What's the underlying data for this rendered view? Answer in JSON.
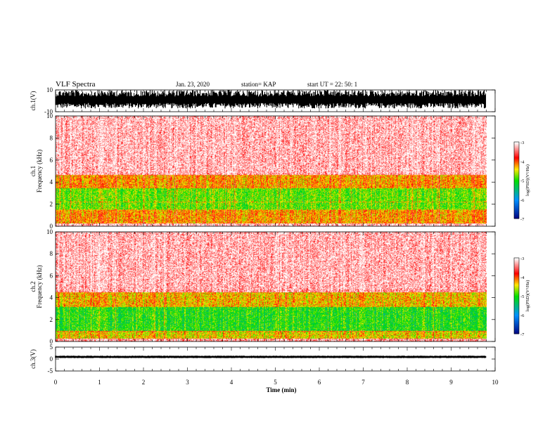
{
  "header": {
    "title": "VLF Spectra",
    "date": "Jan. 23, 2020",
    "station": "station= KAP",
    "start": "start  UT =   22: 50: 1"
  },
  "colors": {
    "low": "#00007f",
    "mid_low": "#0090ff",
    "mid": "#00e000",
    "mid_high": "#ffe800",
    "high": "#ff0000",
    "background": "#ffffff"
  },
  "chart_data": [
    {
      "type": "line",
      "name": "ch1-waveform",
      "ylabel": "ch.1(V)",
      "ylim": [
        -10,
        10
      ],
      "yticks": [
        "10",
        "-10"
      ],
      "x_range_min": [
        0,
        10
      ],
      "data_span_min": [
        0,
        9.8
      ],
      "description_values": {
        "typical_min": -7,
        "typical_max": 10
      }
    },
    {
      "type": "heatmap",
      "name": "ch1-spectrogram",
      "ylabel": "ch.1\nFrequency (kHz)",
      "ylim": [
        0,
        10
      ],
      "yticks": [
        "0",
        "2",
        "4",
        "6",
        "8",
        "10"
      ],
      "colorbar": {
        "label": "log(PSD)(V²/Hz)",
        "range": [
          -7,
          -3
        ],
        "ticks": [
          "-3",
          "-4",
          "-5",
          "-6",
          "-7"
        ]
      },
      "band_profile_khz": [
        {
          "freq_range": [
            0,
            0.3
          ],
          "log_psd": -3.2
        },
        {
          "freq_range": [
            0.3,
            1.5
          ],
          "log_psd": -4.2
        },
        {
          "freq_range": [
            1.5,
            3.5
          ],
          "log_psd": -4.8
        },
        {
          "freq_range": [
            3.5,
            4.7
          ],
          "log_psd": -4.2
        },
        {
          "freq_range": [
            4.7,
            10
          ],
          "log_psd": -3.3
        }
      ]
    },
    {
      "type": "heatmap",
      "name": "ch2-spectrogram",
      "ylabel": "ch.2\nFrequency (kHz)",
      "ylim": [
        0,
        10
      ],
      "yticks": [
        "0",
        "2",
        "4",
        "6",
        "8",
        "10"
      ],
      "colorbar": {
        "label": "log(PSD)(V²/Hz)",
        "range": [
          -7,
          -3
        ],
        "ticks": [
          "-3",
          "-4",
          "-5",
          "-6",
          "-7"
        ]
      },
      "band_profile_khz": [
        {
          "freq_range": [
            0,
            0.3
          ],
          "log_psd": -3.3
        },
        {
          "freq_range": [
            0.3,
            1.0
          ],
          "log_psd": -4.4
        },
        {
          "freq_range": [
            1.0,
            3.2
          ],
          "log_psd": -5.0
        },
        {
          "freq_range": [
            3.2,
            4.5
          ],
          "log_psd": -4.3
        },
        {
          "freq_range": [
            4.5,
            10
          ],
          "log_psd": -3.3
        }
      ]
    },
    {
      "type": "line",
      "name": "ch3-waveform",
      "ylabel": "ch.3(V)",
      "ylim": [
        -5,
        5
      ],
      "yticks": [
        "5",
        "0",
        "-5"
      ],
      "x_range_min": [
        0,
        10
      ],
      "data_span_min": [
        0,
        9.8
      ],
      "description_values": {
        "typical_min": 0.4,
        "typical_max": 1.4
      }
    }
  ],
  "xaxis": {
    "label": "Time (min)",
    "ticks": [
      "0",
      "1",
      "2",
      "3",
      "4",
      "5",
      "6",
      "7",
      "8",
      "9",
      "10"
    ]
  }
}
